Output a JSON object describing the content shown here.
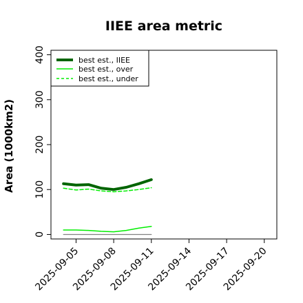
{
  "chart_data": {
    "type": "line",
    "title": "IIEE area metric",
    "xlabel": "",
    "ylabel": "Area (1000km2)",
    "ylim": [
      -10,
      410
    ],
    "yticks": [
      0,
      100,
      200,
      300,
      400
    ],
    "x_start": "2025-09-03",
    "x_end": "2025-09-21",
    "xtick_labels": [
      "2025-09-05",
      "2025-09-08",
      "2025-09-11",
      "2025-09-14",
      "2025-09-17",
      "2025-09-20"
    ],
    "legend_placement": "top-left",
    "grid": false,
    "series": [
      {
        "name": "best est., IIEE",
        "color": "#006400",
        "style": "solid-thick",
        "x": [
          "2025-09-04",
          "2025-09-05",
          "2025-09-06",
          "2025-09-07",
          "2025-09-08",
          "2025-09-09",
          "2025-09-10",
          "2025-09-11"
        ],
        "values": [
          113,
          110,
          111,
          103,
          100,
          105,
          113,
          122
        ]
      },
      {
        "name": "best est., over",
        "color": "#00ee00",
        "style": "solid",
        "x": [
          "2025-09-04",
          "2025-09-05",
          "2025-09-06",
          "2025-09-07",
          "2025-09-08",
          "2025-09-09",
          "2025-09-10",
          "2025-09-11"
        ],
        "values": [
          10,
          10,
          9,
          7,
          6,
          9,
          14,
          18
        ]
      },
      {
        "name": "best est., under",
        "color": "#00ee00",
        "style": "dashed",
        "x": [
          "2025-09-04",
          "2025-09-05",
          "2025-09-06",
          "2025-09-07",
          "2025-09-08",
          "2025-09-09",
          "2025-09-10",
          "2025-09-11"
        ],
        "values": [
          103,
          99,
          101,
          97,
          95,
          97,
          100,
          104
        ]
      },
      {
        "name": "",
        "color": "#808080",
        "style": "solid-thin",
        "x": [
          "2025-09-04",
          "2025-09-11"
        ],
        "values": [
          0,
          0
        ]
      }
    ]
  }
}
